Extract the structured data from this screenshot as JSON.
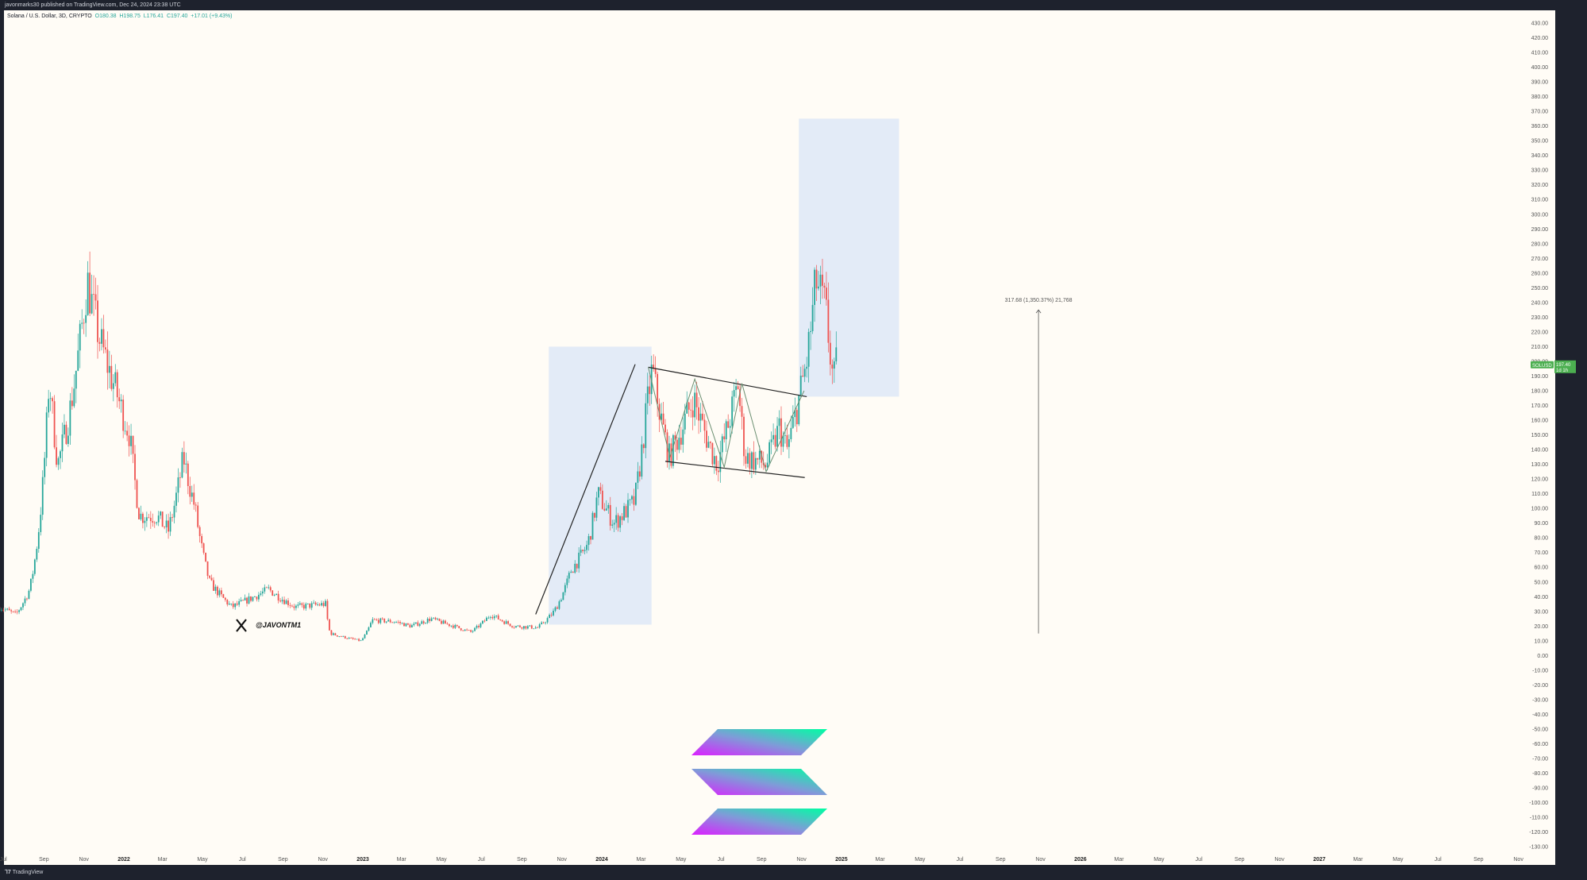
{
  "header": {
    "published": "javonmarks30 published on TradingView.com, Dec 24, 2024 23:38 UTC"
  },
  "legend": {
    "symbol": "Solana / U.S. Dollar, 3D, CRYPTO",
    "open": "O180.38",
    "high": "H198.75",
    "low": "L176.41",
    "close": "C197.40",
    "change": "+17.01 (+9.43%)"
  },
  "footer": {
    "brand": "TradingView"
  },
  "watermark": {
    "handle": "@JAVONTM1"
  },
  "price_tag": {
    "symbol": "SOLUSD",
    "price": "197.40",
    "countdown": "1d 1h",
    "color": "#4caf50"
  },
  "measure_label": "317.68 (1,350.37%) 21,768",
  "colors": {
    "up": "#26a69a",
    "down": "#ef5350",
    "box": "#e3ebf7",
    "background": "#fffcf6"
  },
  "chart_data": {
    "type": "candlestick",
    "interval": "3D",
    "ylim": [
      -130,
      430
    ],
    "y_ticks": [
      "430.00",
      "420.00",
      "410.00",
      "400.00",
      "390.00",
      "380.00",
      "370.00",
      "360.00",
      "350.00",
      "340.00",
      "330.00",
      "320.00",
      "310.00",
      "300.00",
      "290.00",
      "280.00",
      "270.00",
      "260.00",
      "250.00",
      "240.00",
      "230.00",
      "220.00",
      "210.00",
      "200.00",
      "190.00",
      "180.00",
      "170.00",
      "160.00",
      "150.00",
      "140.00",
      "130.00",
      "120.00",
      "110.00",
      "100.00",
      "90.00",
      "80.00",
      "70.00",
      "60.00",
      "50.00",
      "40.00",
      "30.00",
      "20.00",
      "10.00",
      "0.00",
      "-10.00",
      "-20.00",
      "-30.00",
      "-40.00",
      "-50.00",
      "-60.00",
      "-70.00",
      "-80.00",
      "-90.00",
      "-100.00",
      "-110.00",
      "-120.00",
      "-130.00"
    ],
    "x_ticks": [
      {
        "label": "Jul",
        "date": "2021-07-01"
      },
      {
        "label": "Sep",
        "date": "2021-09-01"
      },
      {
        "label": "Nov",
        "date": "2021-11-01"
      },
      {
        "label": "2022",
        "date": "2022-01-01",
        "bold": true
      },
      {
        "label": "Mar",
        "date": "2022-03-01"
      },
      {
        "label": "May",
        "date": "2022-05-01"
      },
      {
        "label": "Jul",
        "date": "2022-07-01"
      },
      {
        "label": "Sep",
        "date": "2022-09-01"
      },
      {
        "label": "Nov",
        "date": "2022-11-01"
      },
      {
        "label": "2023",
        "date": "2023-01-01",
        "bold": true
      },
      {
        "label": "Mar",
        "date": "2023-03-01"
      },
      {
        "label": "May",
        "date": "2023-05-01"
      },
      {
        "label": "Jul",
        "date": "2023-07-01"
      },
      {
        "label": "Sep",
        "date": "2023-09-01"
      },
      {
        "label": "Nov",
        "date": "2023-11-01"
      },
      {
        "label": "2024",
        "date": "2024-01-01",
        "bold": true
      },
      {
        "label": "Mar",
        "date": "2024-03-01"
      },
      {
        "label": "May",
        "date": "2024-05-01"
      },
      {
        "label": "Jul",
        "date": "2024-07-01"
      },
      {
        "label": "Sep",
        "date": "2024-09-01"
      },
      {
        "label": "Nov",
        "date": "2024-11-01"
      },
      {
        "label": "2025",
        "date": "2025-01-01",
        "bold": true
      },
      {
        "label": "Mar",
        "date": "2025-03-01"
      },
      {
        "label": "May",
        "date": "2025-05-01"
      },
      {
        "label": "Jul",
        "date": "2025-07-01"
      },
      {
        "label": "Sep",
        "date": "2025-09-01"
      },
      {
        "label": "Nov",
        "date": "2025-11-01"
      },
      {
        "label": "2026",
        "date": "2026-01-01",
        "bold": true
      },
      {
        "label": "Mar",
        "date": "2026-03-01"
      },
      {
        "label": "May",
        "date": "2026-05-01"
      },
      {
        "label": "Jul",
        "date": "2026-07-01"
      },
      {
        "label": "Sep",
        "date": "2026-09-01"
      },
      {
        "label": "Nov",
        "date": "2026-11-01"
      },
      {
        "label": "2027",
        "date": "2027-01-01",
        "bold": true
      },
      {
        "label": "Mar",
        "date": "2027-03-01"
      },
      {
        "label": "May",
        "date": "2027-05-01"
      },
      {
        "label": "Jul",
        "date": "2027-07-01"
      },
      {
        "label": "Sep",
        "date": "2027-09-01"
      },
      {
        "label": "Nov",
        "date": "2027-11-01"
      }
    ],
    "price_path": [
      [
        "2021-06-25",
        33
      ],
      [
        "2021-07-20",
        28
      ],
      [
        "2021-08-10",
        45
      ],
      [
        "2021-08-25",
        90
      ],
      [
        "2021-09-09",
        190
      ],
      [
        "2021-09-22",
        130
      ],
      [
        "2021-10-10",
        165
      ],
      [
        "2021-11-06",
        255
      ],
      [
        "2021-11-25",
        215
      ],
      [
        "2021-12-20",
        180
      ],
      [
        "2022-01-10",
        150
      ],
      [
        "2022-01-25",
        95
      ],
      [
        "2022-02-20",
        95
      ],
      [
        "2022-03-10",
        85
      ],
      [
        "2022-04-02",
        135
      ],
      [
        "2022-04-20",
        100
      ],
      [
        "2022-05-12",
        50
      ],
      [
        "2022-06-15",
        33
      ],
      [
        "2022-07-10",
        38
      ],
      [
        "2022-08-10",
        45
      ],
      [
        "2022-09-20",
        33
      ],
      [
        "2022-11-05",
        35
      ],
      [
        "2022-11-12",
        15
      ],
      [
        "2022-12-29",
        10
      ],
      [
        "2023-01-15",
        24
      ],
      [
        "2023-02-20",
        23
      ],
      [
        "2023-03-15",
        20
      ],
      [
        "2023-04-15",
        25
      ],
      [
        "2023-05-20",
        20
      ],
      [
        "2023-06-15",
        16
      ],
      [
        "2023-07-15",
        28
      ],
      [
        "2023-08-20",
        20
      ],
      [
        "2023-09-25",
        19
      ],
      [
        "2023-10-20",
        30
      ],
      [
        "2023-11-15",
        58
      ],
      [
        "2023-12-10",
        75
      ],
      [
        "2023-12-26",
        110
      ],
      [
        "2024-01-20",
        90
      ],
      [
        "2024-02-20",
        105
      ],
      [
        "2024-03-10",
        170
      ],
      [
        "2024-03-18",
        195
      ],
      [
        "2024-04-13",
        135
      ],
      [
        "2024-05-20",
        175
      ],
      [
        "2024-06-25",
        130
      ],
      [
        "2024-07-27",
        185
      ],
      [
        "2024-08-07",
        135
      ],
      [
        "2024-09-08",
        130
      ],
      [
        "2024-09-28",
        155
      ],
      [
        "2024-10-10",
        140
      ],
      [
        "2024-10-28",
        175
      ],
      [
        "2024-11-09",
        200
      ],
      [
        "2024-11-23",
        255
      ],
      [
        "2024-12-08",
        235
      ],
      [
        "2024-12-20",
        185
      ],
      [
        "2024-12-24",
        197
      ]
    ],
    "drawings": {
      "boxes": [
        {
          "from": "2023-10-12",
          "to": "2024-03-17",
          "top": 210,
          "bottom": 21
        },
        {
          "from": "2024-10-28",
          "to": "2025-03-30",
          "top": 365,
          "bottom": 176
        }
      ],
      "lines": [
        {
          "from": [
            "2023-09-22",
            28
          ],
          "to": [
            "2024-02-21",
            198
          ]
        },
        {
          "from": [
            "2024-03-12",
            196
          ],
          "to": [
            "2024-11-09",
            176
          ]
        },
        {
          "from": [
            "2024-04-07",
            132
          ],
          "to": [
            "2024-11-06",
            121
          ]
        }
      ],
      "zigzag": [
        [
          "2024-03-12",
          196
        ],
        [
          "2024-04-14",
          135
        ],
        [
          "2024-05-22",
          188
        ],
        [
          "2024-07-06",
          128
        ],
        [
          "2024-08-02",
          185
        ],
        [
          "2024-09-08",
          125
        ],
        [
          "2024-11-05",
          180
        ]
      ],
      "measure": {
        "date": "2025-10-29",
        "from": 15,
        "to": 235
      }
    }
  }
}
